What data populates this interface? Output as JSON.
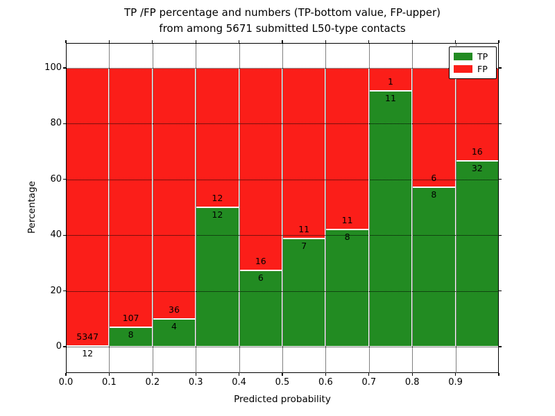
{
  "title": {
    "line1": "TP /FP percentage and numbers (TP-bottom value, FP-upper)",
    "line2": "from among 5671 submitted L50-type contacts"
  },
  "axes": {
    "x_label": "Predicted probability",
    "y_label": "Percentage",
    "x_tick_labels": [
      "0.0",
      "0.1",
      "0.2",
      "0.3",
      "0.4",
      "0.5",
      "0.6",
      "0.7",
      "0.8",
      "0.9"
    ],
    "y_tick_values": [
      0,
      20,
      40,
      60,
      80,
      100
    ],
    "x_range": [
      0.0,
      1.0
    ],
    "y_visible_range": [
      -9.5,
      109.0
    ],
    "grid": "dotted black, horizontal every 20%, vertical every 0.1"
  },
  "legend": {
    "position": "upper right",
    "items": [
      {
        "label": "TP",
        "color": "#228b22"
      },
      {
        "label": "FP",
        "color": "#fb1e19"
      }
    ]
  },
  "colors": {
    "tp": "#228b22",
    "fp": "#fb1e19",
    "text": "#000000",
    "background": "#ffffff"
  },
  "chart_data": {
    "type": "bar",
    "stacked": true,
    "normalized": "each bin stacked to 100%",
    "title": "TP /FP percentage and numbers (TP-bottom value, FP-upper) from among 5671 submitted L50-type contacts",
    "xlabel": "Predicted probability",
    "ylabel": "Percentage",
    "total_contacts": 5671,
    "categories": [
      "0.0-0.1",
      "0.1-0.2",
      "0.2-0.3",
      "0.3-0.4",
      "0.4-0.5",
      "0.5-0.6",
      "0.6-0.7",
      "0.7-0.8",
      "0.8-0.9",
      "0.9-1.0"
    ],
    "series": [
      {
        "name": "TP",
        "color": "#228b22",
        "counts": [
          12,
          8,
          4,
          12,
          6,
          7,
          8,
          11,
          8,
          32
        ]
      },
      {
        "name": "FP",
        "color": "#fb1e19",
        "counts": [
          5347,
          107,
          36,
          12,
          16,
          11,
          11,
          1,
          6,
          16
        ]
      }
    ],
    "tp_percent": [
      0.22,
      6.96,
      10.0,
      50.0,
      27.27,
      38.89,
      42.11,
      91.67,
      57.14,
      66.67
    ],
    "fp_percent": [
      99.78,
      93.04,
      90.0,
      50.0,
      72.73,
      61.11,
      57.89,
      8.33,
      42.86,
      33.33
    ]
  }
}
